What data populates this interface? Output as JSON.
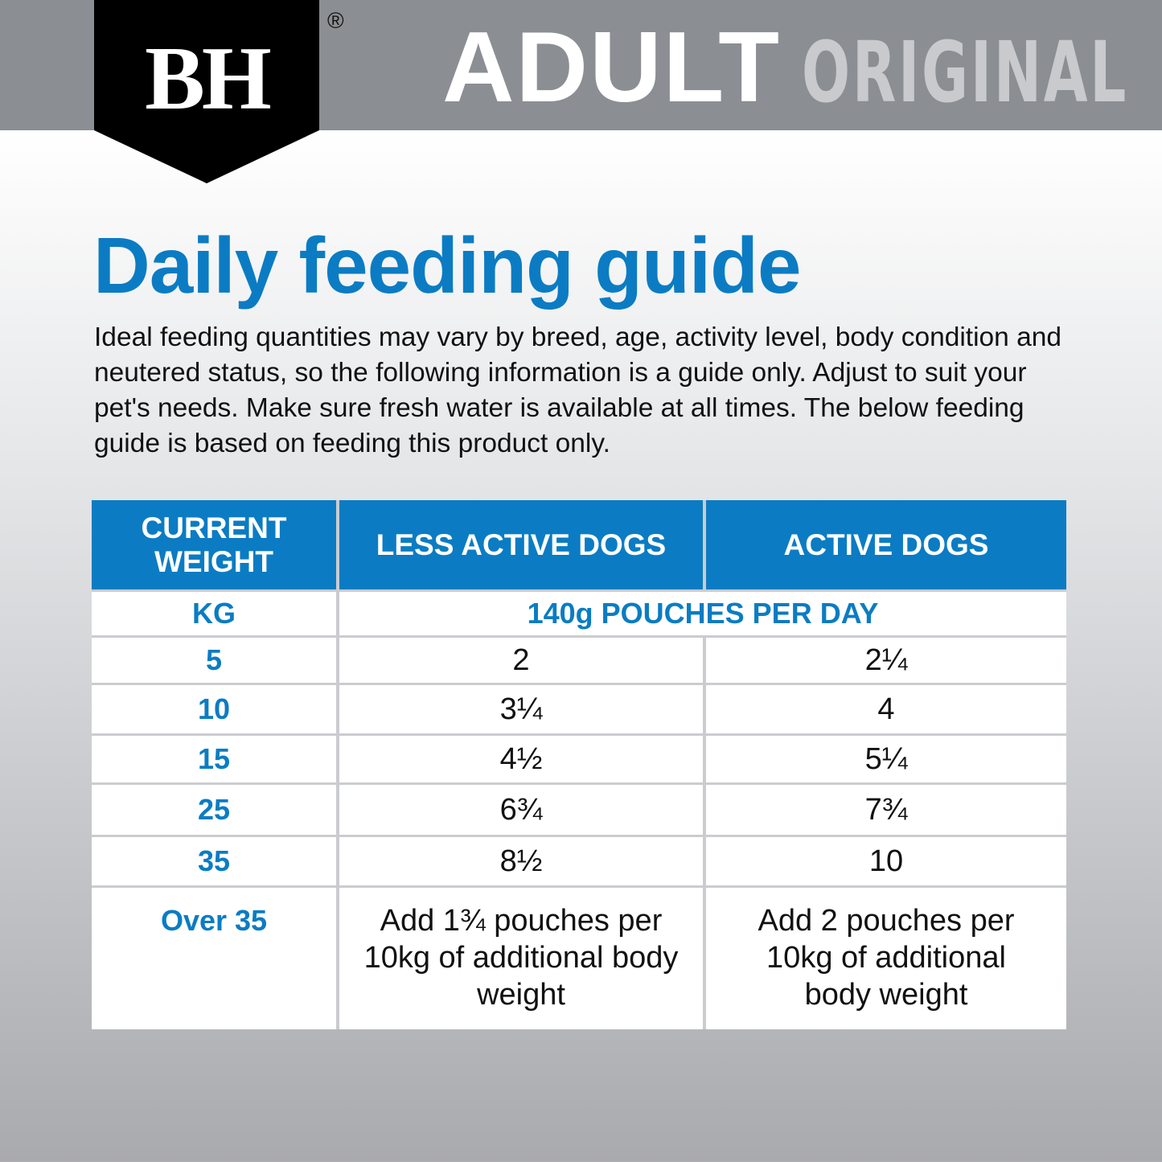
{
  "header": {
    "logo": "BH",
    "registered": "®",
    "title_bold": "ADULT",
    "title_light": "ORIGINAL"
  },
  "heading": "Daily feeding guide",
  "intro": "Ideal feeding quantities may vary by breed, age, activity level, body condition and neutered status, so the following information is a guide only. Adjust to suit your pet's needs. Make sure fresh water is available at all times. The below feeding guide is based on feeding this product only.",
  "table": {
    "headers": [
      "CURRENT WEIGHT",
      "LESS ACTIVE DOGS",
      "ACTIVE DOGS"
    ],
    "units": [
      "KG",
      "140g POUCHES PER DAY"
    ],
    "rows": [
      [
        "5",
        "2",
        "2¼"
      ],
      [
        "10",
        "3¼",
        "4"
      ],
      [
        "15",
        "4½",
        "5¼"
      ],
      [
        "25",
        "6¾",
        "7¾"
      ],
      [
        "35",
        "8½",
        "10"
      ],
      [
        "Over 35",
        "Add 1¾ pouches per 10kg of additional body weight",
        "Add 2 pouches per 10kg of additional body weight"
      ]
    ]
  }
}
